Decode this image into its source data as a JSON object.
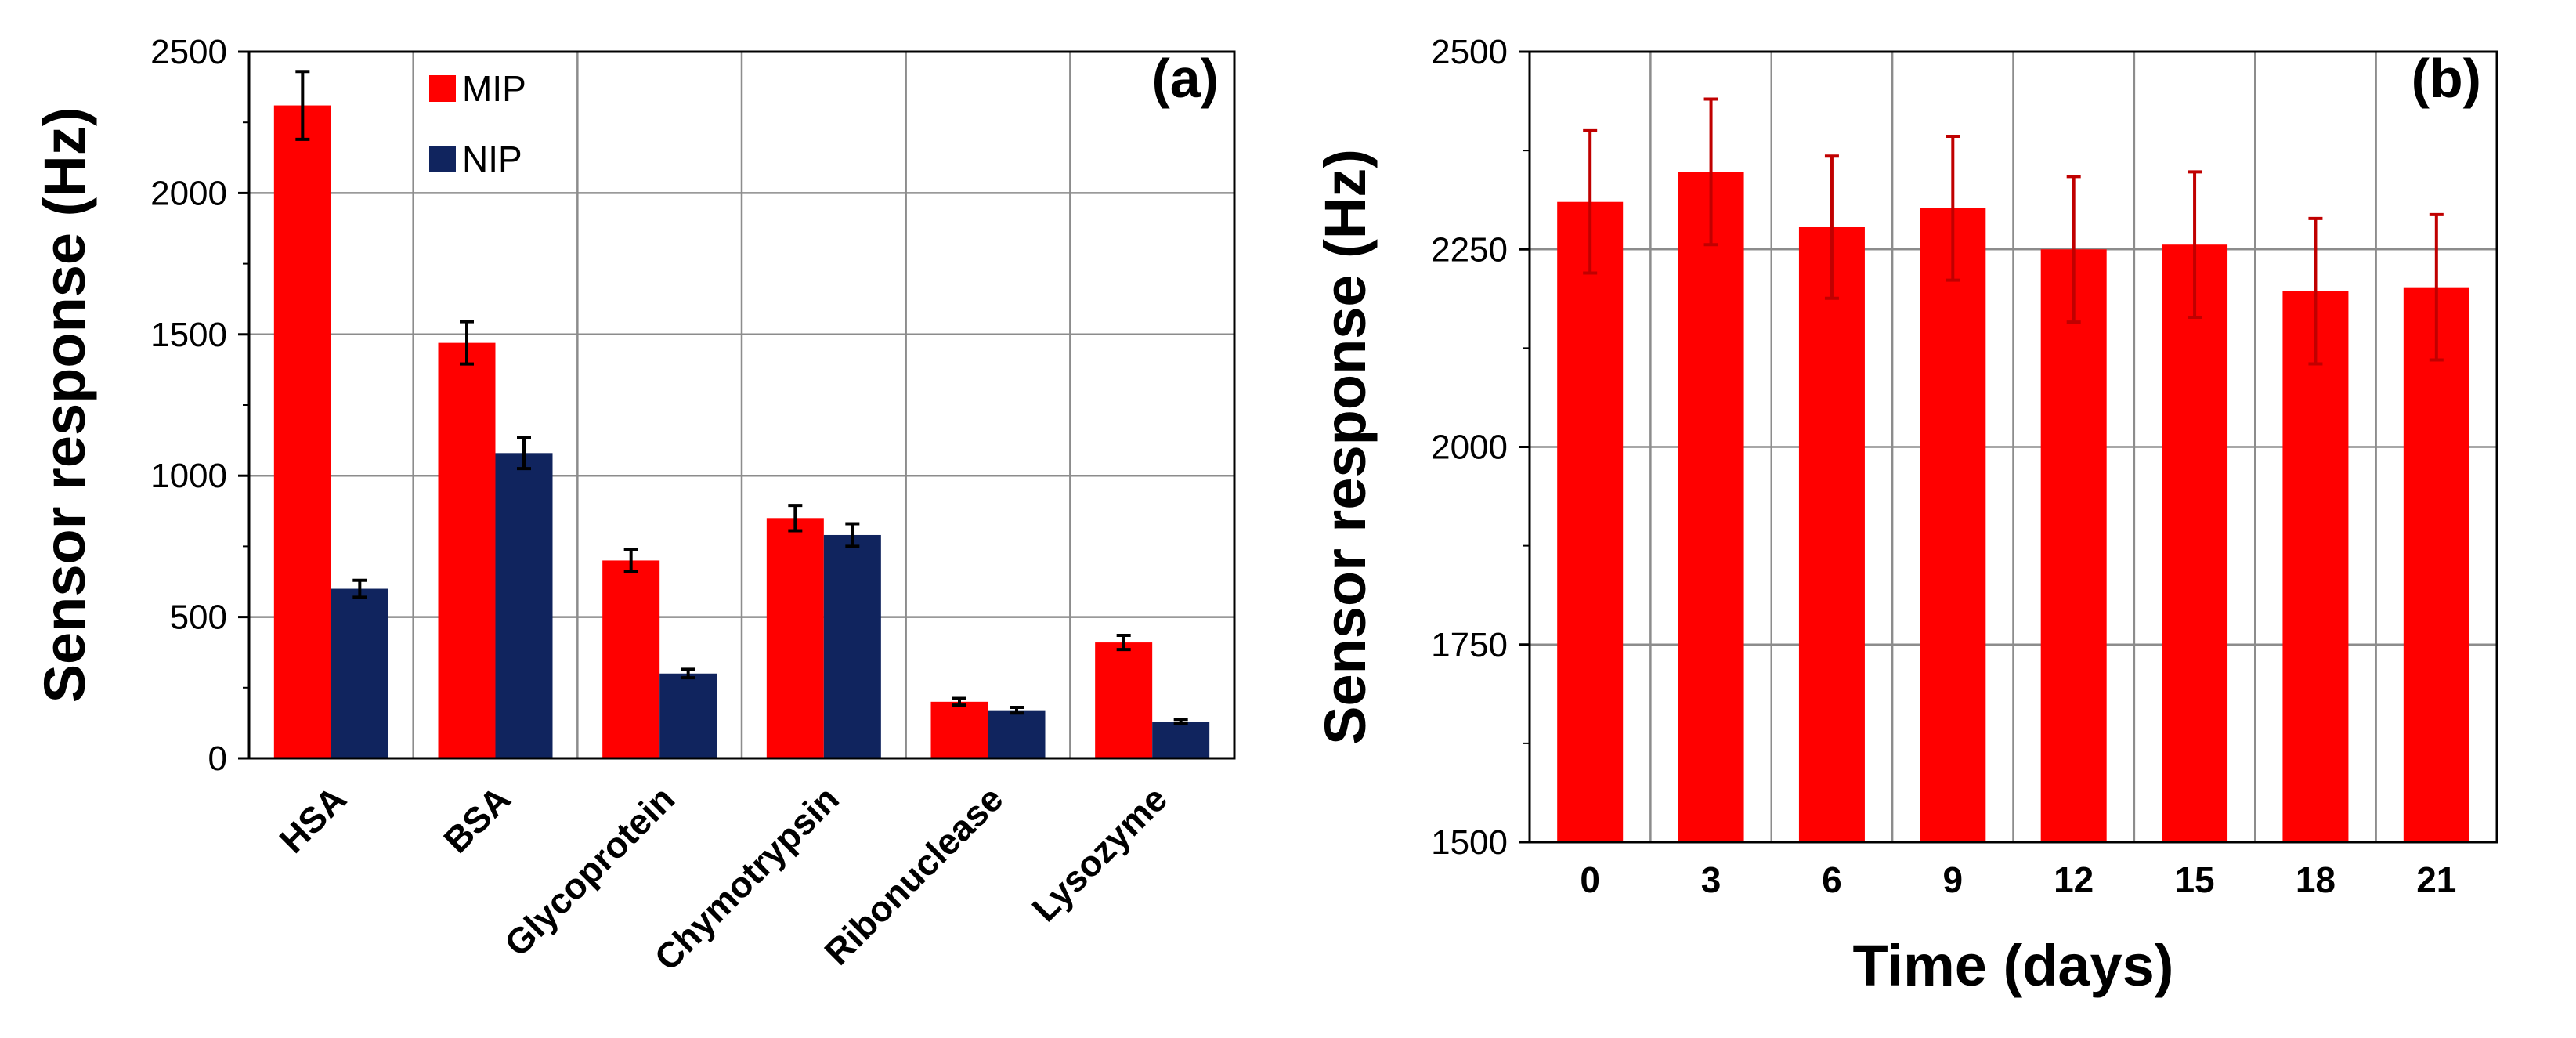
{
  "chart_data": [
    {
      "type": "bar",
      "panel_label": "(a)",
      "ylabel": "Sensor response (Hz)",
      "xlabel": "",
      "ylim": [
        0,
        2500
      ],
      "yticks": [
        0,
        500,
        1000,
        1500,
        2000,
        2500
      ],
      "grid": true,
      "legend_position": "top-left",
      "categories": [
        "HSA",
        "BSA",
        "Glycoprotein",
        "Chymotrypsin",
        "Ribonuclease",
        "Lysozyme"
      ],
      "series": [
        {
          "name": "MIP",
          "color": "#ff0000",
          "values": [
            2310,
            1470,
            700,
            850,
            200,
            410
          ],
          "errors": [
            120,
            75,
            40,
            45,
            12,
            25
          ]
        },
        {
          "name": "NIP",
          "color": "#10245e",
          "values": [
            600,
            1080,
            300,
            790,
            170,
            130
          ],
          "errors": [
            30,
            55,
            15,
            40,
            10,
            8
          ]
        }
      ]
    },
    {
      "type": "bar",
      "panel_label": "(b)",
      "ylabel": "Sensor response (Hz)",
      "xlabel": "Time (days)",
      "ylim": [
        1500,
        2500
      ],
      "yticks": [
        1500,
        1750,
        2000,
        2250,
        2500
      ],
      "grid": true,
      "categories": [
        "0",
        "3",
        "6",
        "9",
        "12",
        "15",
        "18",
        "21"
      ],
      "series": [
        {
          "name": "Sensor response",
          "color": "#ff0000",
          "error_color": "#c00000",
          "values": [
            2310,
            2348,
            2278,
            2302,
            2250,
            2256,
            2197,
            2202
          ],
          "errors": [
            90,
            92,
            90,
            91,
            92,
            92,
            92,
            92
          ]
        }
      ]
    }
  ]
}
